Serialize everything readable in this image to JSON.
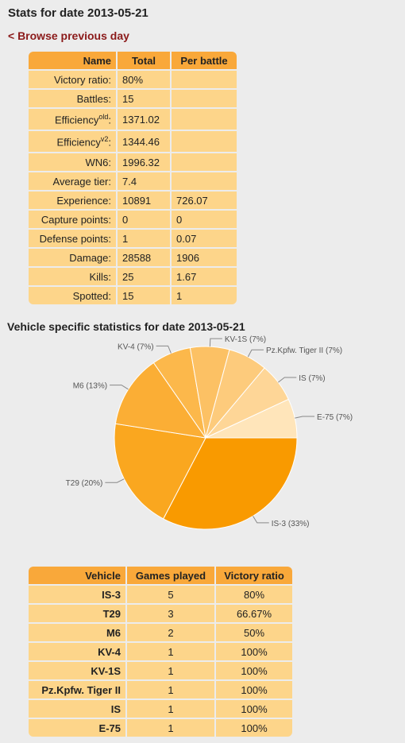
{
  "page": {
    "title": "Stats for date 2013-05-21",
    "back_link": "< Browse previous day",
    "vehicle_section_title": "Vehicle specific statistics for date 2013-05-21"
  },
  "summary_table": {
    "headers": [
      "Name",
      "Total",
      "Per battle"
    ],
    "rows": [
      {
        "label": "Victory ratio:",
        "total": "80%",
        "per_battle": ""
      },
      {
        "label": "Battles:",
        "total": "15",
        "per_battle": ""
      },
      {
        "label": "Efficiency",
        "sup": "old",
        "suffix": ":",
        "total": "1371.02",
        "per_battle": ""
      },
      {
        "label": "Efficiency",
        "sup": "v2",
        "suffix": ":",
        "total": "1344.46",
        "per_battle": ""
      },
      {
        "label": "WN6:",
        "total": "1996.32",
        "per_battle": ""
      },
      {
        "label": "Average tier:",
        "total": "7.4",
        "per_battle": ""
      },
      {
        "label": "Experience:",
        "total": "10891",
        "per_battle": "726.07"
      },
      {
        "label": "Capture points:",
        "total": "0",
        "per_battle": "0"
      },
      {
        "label": "Defense points:",
        "total": "1",
        "per_battle": "0.07"
      },
      {
        "label": "Damage:",
        "total": "28588",
        "per_battle": "1906"
      },
      {
        "label": "Kills:",
        "total": "25",
        "per_battle": "1.67"
      },
      {
        "label": "Spotted:",
        "total": "15",
        "per_battle": "1"
      }
    ]
  },
  "chart_data": {
    "type": "pie",
    "title": "",
    "categories": [
      "IS-3",
      "T29",
      "M6",
      "KV-4",
      "KV-1S",
      "Pz.Kpfw. Tiger II",
      "IS",
      "E-75"
    ],
    "values": [
      33,
      20,
      13,
      7,
      7,
      7,
      7,
      7
    ],
    "labels": [
      "IS-3 (33%)",
      "T29 (20%)",
      "M6 (13%)",
      "KV-4 (7%)",
      "KV-1S (7%)",
      "Pz.Kpfw. Tiger II (7%)",
      "IS (7%)",
      "E-75 (7%)"
    ],
    "colors": [
      "#f99a00",
      "#faa71f",
      "#fbae35",
      "#fcb84b",
      "#fcc164",
      "#fdcb7c",
      "#fed697",
      "#ffe5ba"
    ]
  },
  "vehicle_table": {
    "headers": [
      "Vehicle",
      "Games played",
      "Victory ratio"
    ],
    "rows": [
      {
        "vehicle": "IS-3",
        "games": "5",
        "ratio": "80%"
      },
      {
        "vehicle": "T29",
        "games": "3",
        "ratio": "66.67%"
      },
      {
        "vehicle": "M6",
        "games": "2",
        "ratio": "50%"
      },
      {
        "vehicle": "KV-4",
        "games": "1",
        "ratio": "100%"
      },
      {
        "vehicle": "KV-1S",
        "games": "1",
        "ratio": "100%"
      },
      {
        "vehicle": "Pz.Kpfw. Tiger II",
        "games": "1",
        "ratio": "100%"
      },
      {
        "vehicle": "IS",
        "games": "1",
        "ratio": "100%"
      },
      {
        "vehicle": "E-75",
        "games": "1",
        "ratio": "100%"
      }
    ]
  }
}
